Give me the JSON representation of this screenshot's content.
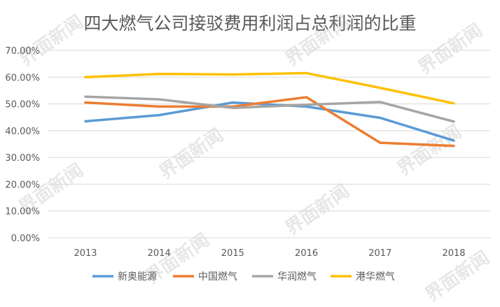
{
  "chart_data": {
    "type": "line",
    "title": "四大燃气公司接驳费用利润占总利润的比重",
    "x": [
      "2013",
      "2014",
      "2015",
      "2016",
      "2017",
      "2018"
    ],
    "ylim": [
      0,
      0.7
    ],
    "yticks": [
      "0.00%",
      "10.00%",
      "20.00%",
      "30.00%",
      "40.00%",
      "50.00%",
      "60.00%",
      "70.00%"
    ],
    "grid": true,
    "legend_position": "bottom",
    "series": [
      {
        "name": "新奥能源",
        "color": "#5B9BD5",
        "values": [
          0.435,
          0.458,
          0.505,
          0.49,
          0.448,
          0.363
        ]
      },
      {
        "name": "中国燃气",
        "color": "#ED7D31",
        "values": [
          0.505,
          0.49,
          0.49,
          0.525,
          0.355,
          0.343
        ]
      },
      {
        "name": "华润燃气",
        "color": "#A5A5A5",
        "values": [
          0.527,
          0.517,
          0.485,
          0.497,
          0.507,
          0.434
        ]
      },
      {
        "name": "港华燃气",
        "color": "#FFC000",
        "values": [
          0.6,
          0.612,
          0.61,
          0.615,
          0.56,
          0.502
        ]
      }
    ]
  },
  "watermark": "界面新闻"
}
